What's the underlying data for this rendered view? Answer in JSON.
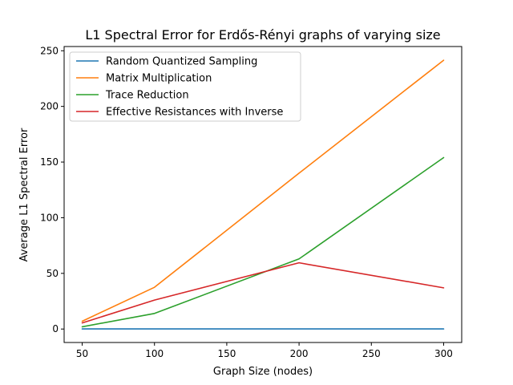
{
  "chart_data": {
    "type": "line",
    "title": "L1 Spectral Error for Erdős-Rényi graphs of varying size",
    "xlabel": "Graph Size (nodes)",
    "ylabel": "Average L1 Spectral Error",
    "x": [
      50,
      100,
      200,
      300
    ],
    "xlim": [
      37.5,
      312.5
    ],
    "ylim": [
      -12.1,
      253.8
    ],
    "xticks": [
      50,
      100,
      150,
      200,
      250,
      300
    ],
    "yticks": [
      0,
      50,
      100,
      150,
      200,
      250
    ],
    "grid": false,
    "legend_position": "upper-left",
    "series": [
      {
        "name": "Random Quantized Sampling",
        "color": "#1f77b4",
        "values": [
          0.1,
          0.1,
          0.1,
          0.1
        ]
      },
      {
        "name": "Matrix Multiplication",
        "color": "#ff7f0e",
        "values": [
          7,
          37.5,
          140,
          241.5
        ]
      },
      {
        "name": "Trace Reduction",
        "color": "#2ca02c",
        "values": [
          2,
          14,
          63,
          154
        ]
      },
      {
        "name": "Effective Resistances with Inverse",
        "color": "#d62728",
        "values": [
          5.5,
          26,
          59.5,
          37
        ]
      }
    ]
  }
}
